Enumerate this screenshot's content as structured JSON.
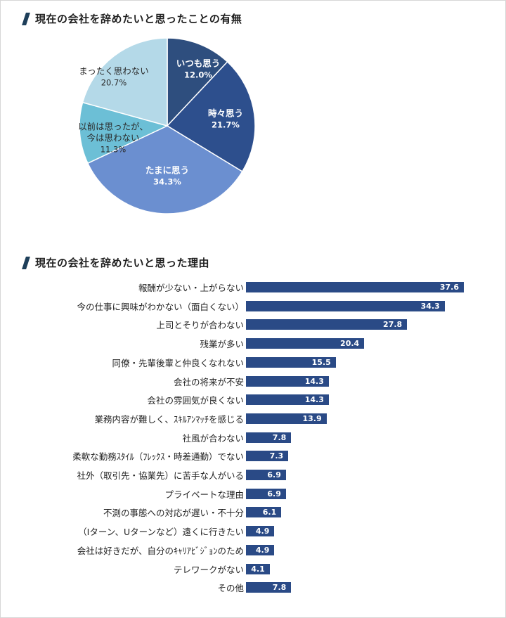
{
  "pie_title": "現在の会社を辞めたいと思ったことの有無",
  "bar_title": "現在の会社を辞めたいと思った理由",
  "chart_data": [
    {
      "type": "pie",
      "title": "現在の会社を辞めたいと思ったことの有無",
      "slices": [
        {
          "lines": [
            "いつも思う"
          ],
          "value": 12.0,
          "value_label": "12.0%",
          "color": "#2e4e7e",
          "text_color": "#ffffff"
        },
        {
          "lines": [
            "時々思う"
          ],
          "value": 21.7,
          "value_label": "21.7%",
          "color": "#2d4f8d",
          "text_color": "#ffffff"
        },
        {
          "lines": [
            "たまに思う"
          ],
          "value": 34.3,
          "value_label": "34.3%",
          "color": "#6b8fd0",
          "text_color": "#ffffff"
        },
        {
          "lines": [
            "以前は思ったが、",
            "今は思わない"
          ],
          "value": 11.3,
          "value_label": "11.3%",
          "color": "#6cbfd6",
          "text_color": "#2a2a2a"
        },
        {
          "lines": [
            "まったく思わない"
          ],
          "value": 20.7,
          "value_label": "20.7%",
          "color": "#b4d9e8",
          "text_color": "#2a2a2a"
        }
      ]
    },
    {
      "type": "bar",
      "orientation": "horizontal",
      "title": "現在の会社を辞めたいと思った理由",
      "color": "#2a4a86",
      "categories": [
        "報酬が少ない・上がらない",
        "今の仕事に興味がわかない（面白くない）",
        "上司とそりが合わない",
        "残業が多い",
        "同僚・先輩後輩と仲良くなれない",
        "会社の将来が不安",
        "会社の雰囲気が良くない",
        "業務内容が難しく、ｽｷﾙｱﾝﾏｯﾁを感じる",
        "社風が合わない",
        "柔軟な勤務ｽﾀｲﾙ（ﾌﾚｯｸｽ・時差通勤）でない",
        "社外（取引先・協業先）に苦手な人がいる",
        "プライベートな理由",
        "不測の事態への対応が遅い・不十分",
        "（Iターン、Uターンなど）遠くに行きたい",
        "会社は好きだが、自分のｷｬﾘｱﾋﾞｼﾞｮﾝのため",
        "テレワークがない",
        "その他"
      ],
      "values": [
        37.6,
        34.3,
        27.8,
        20.4,
        15.5,
        14.3,
        14.3,
        13.9,
        7.8,
        7.3,
        6.9,
        6.9,
        6.1,
        4.9,
        4.9,
        4.1,
        7.8
      ],
      "value_labels": [
        "37.6",
        "34.3",
        "27.8",
        "20.4",
        "15.5",
        "14.3",
        "14.3",
        "13.9",
        "7.8",
        "7.3",
        "6.9",
        "6.9",
        "6.1",
        "4.9",
        "4.9",
        "4.1",
        "7.8"
      ]
    }
  ]
}
